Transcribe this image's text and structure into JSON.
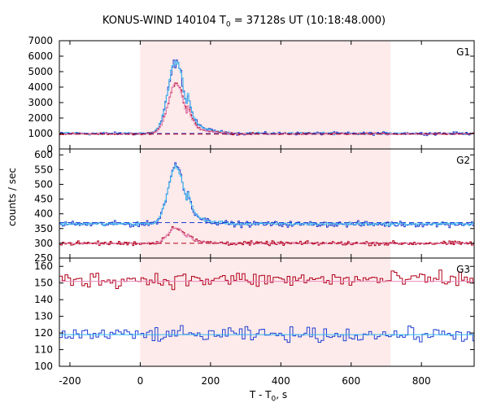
{
  "title_main": "KONUS-WIND 140104 T",
  "title_sub": "0",
  "title_rest": " = 37128s UT (10:18:48.000)",
  "ylabel": "counts / sec",
  "xlabel_main": "T - T",
  "xlabel_sub": "0",
  "xlabel_rest": ", s",
  "chart_data": {
    "type": "line",
    "x_range": [
      -230,
      950
    ],
    "x_ticks": [
      -200,
      0,
      200,
      400,
      600,
      800
    ],
    "shaded_interval": [
      0,
      712
    ],
    "shaded_color": "#fdeaea",
    "panels": [
      {
        "name": "G1",
        "ylim": [
          0,
          7000
        ],
        "y_ticks": [
          0,
          1000,
          2000,
          3000,
          4000,
          5000,
          6000,
          7000
        ],
        "series": [
          {
            "color": "#1f3fd1",
            "role": "total",
            "background": 1000,
            "peak": 5600,
            "noise": 80
          },
          {
            "color": "#35b8f0",
            "role": "total",
            "background": 1000,
            "peak": 5700,
            "noise": 60
          },
          {
            "color": "#b0001a",
            "role": "soft",
            "background": 980,
            "peak": 4300,
            "noise": 50
          },
          {
            "color": "#e88cc0",
            "role": "soft",
            "background": 980,
            "peak": 4200,
            "noise": 40
          }
        ],
        "background_lines": [
          {
            "color": "#1f3fd1",
            "value": 1000
          },
          {
            "color": "#b0001a",
            "value": 960
          }
        ]
      },
      {
        "name": "G2",
        "ylim": [
          250,
          620
        ],
        "y_ticks": [
          250,
          300,
          350,
          400,
          450,
          500,
          550,
          600
        ],
        "series": [
          {
            "color": "#1f3fd1",
            "role": "total",
            "background": 365,
            "peak": 565,
            "noise": 8
          },
          {
            "color": "#35b8f0",
            "role": "total",
            "background": 366,
            "peak": 560,
            "noise": 4
          },
          {
            "color": "#b0001a",
            "role": "soft",
            "background": 300,
            "peak": 355,
            "noise": 6
          },
          {
            "color": "#e88cc0",
            "role": "soft",
            "background": 300,
            "peak": 352,
            "noise": 2
          }
        ],
        "background_lines": [
          {
            "color": "#1f3fd1",
            "value": 370
          },
          {
            "color": "#b0001a",
            "value": 300
          }
        ]
      },
      {
        "name": "G3",
        "ylim": [
          100,
          165
        ],
        "y_ticks": [
          100,
          110,
          120,
          130,
          140,
          150,
          160
        ],
        "series": [
          {
            "color": "#b0001a",
            "role": "g3-high",
            "background": 152,
            "peak": 152,
            "noise": 4
          },
          {
            "color": "#e88cc0",
            "role": "g3-high-fit",
            "background": 151,
            "peak": 151,
            "noise": 0
          },
          {
            "color": "#1f3fd1",
            "role": "g3-low",
            "background": 119,
            "peak": 119,
            "noise": 3.5
          },
          {
            "color": "#35b8f0",
            "role": "g3-low-fit",
            "background": 119,
            "peak": 119,
            "noise": 0
          }
        ],
        "background_lines": []
      }
    ]
  }
}
